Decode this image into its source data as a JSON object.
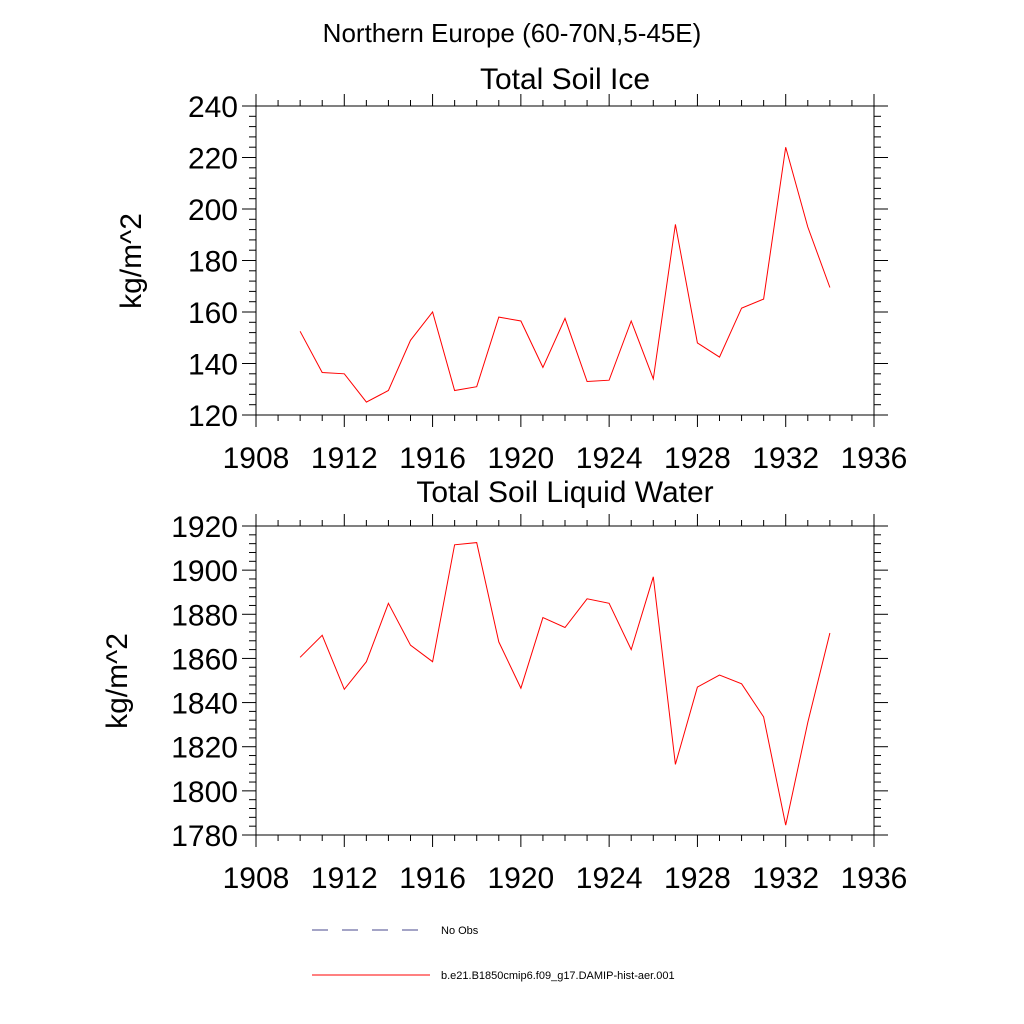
{
  "figure_title": "Northern Europe (60-70N,5-45E)",
  "legend": [
    {
      "label": "No Obs",
      "style": "dashed",
      "color": "#4a4a8c"
    },
    {
      "label": "b.e21.B1850cmip6.f09_g17.DAMIP-hist-aer.001",
      "style": "solid",
      "color": "#ff0000"
    }
  ],
  "chart_data": [
    {
      "type": "line",
      "title": "Total Soil Ice",
      "xlabel": "",
      "ylabel": "kg/m^2",
      "xlim": [
        1908,
        1936
      ],
      "ylim": [
        120,
        240
      ],
      "xticks": [
        1908,
        1912,
        1916,
        1920,
        1924,
        1928,
        1932,
        1936
      ],
      "yticks": [
        120,
        140,
        160,
        180,
        200,
        220,
        240
      ],
      "grid": false,
      "series": [
        {
          "name": "b.e21.B1850cmip6.f09_g17.DAMIP-hist-aer.001",
          "color": "#ff0000",
          "x": [
            1910,
            1911,
            1912,
            1913,
            1914,
            1915,
            1916,
            1917,
            1918,
            1919,
            1920,
            1921,
            1922,
            1923,
            1924,
            1925,
            1926,
            1927,
            1928,
            1929,
            1930,
            1931,
            1932,
            1933,
            1934
          ],
          "y": [
            152.5,
            136.5,
            136,
            125,
            129.5,
            149,
            160,
            129.5,
            131,
            158,
            156.5,
            138.5,
            157.5,
            133,
            133.5,
            156.5,
            134,
            194,
            148,
            142.5,
            161.5,
            165,
            224,
            193,
            169.5
          ]
        }
      ]
    },
    {
      "type": "line",
      "title": "Total Soil Liquid Water",
      "xlabel": "",
      "ylabel": "kg/m^2",
      "xlim": [
        1908,
        1936
      ],
      "ylim": [
        1780,
        1920
      ],
      "xticks": [
        1908,
        1912,
        1916,
        1920,
        1924,
        1928,
        1932,
        1936
      ],
      "yticks": [
        1780,
        1800,
        1820,
        1840,
        1860,
        1880,
        1900,
        1920
      ],
      "grid": false,
      "series": [
        {
          "name": "b.e21.B1850cmip6.f09_g17.DAMIP-hist-aer.001",
          "color": "#ff0000",
          "x": [
            1910,
            1911,
            1912,
            1913,
            1914,
            1915,
            1916,
            1917,
            1918,
            1919,
            1920,
            1921,
            1922,
            1923,
            1924,
            1925,
            1926,
            1927,
            1928,
            1929,
            1930,
            1931,
            1932,
            1933,
            1934
          ],
          "y": [
            1860.5,
            1870.5,
            1846,
            1858.5,
            1885,
            1866,
            1858.5,
            1911.5,
            1912.5,
            1867.5,
            1846.5,
            1878.5,
            1874,
            1887,
            1885,
            1864,
            1897,
            1812,
            1847,
            1852.5,
            1848.5,
            1833.5,
            1784.5,
            1831,
            1871.5
          ]
        }
      ]
    }
  ]
}
